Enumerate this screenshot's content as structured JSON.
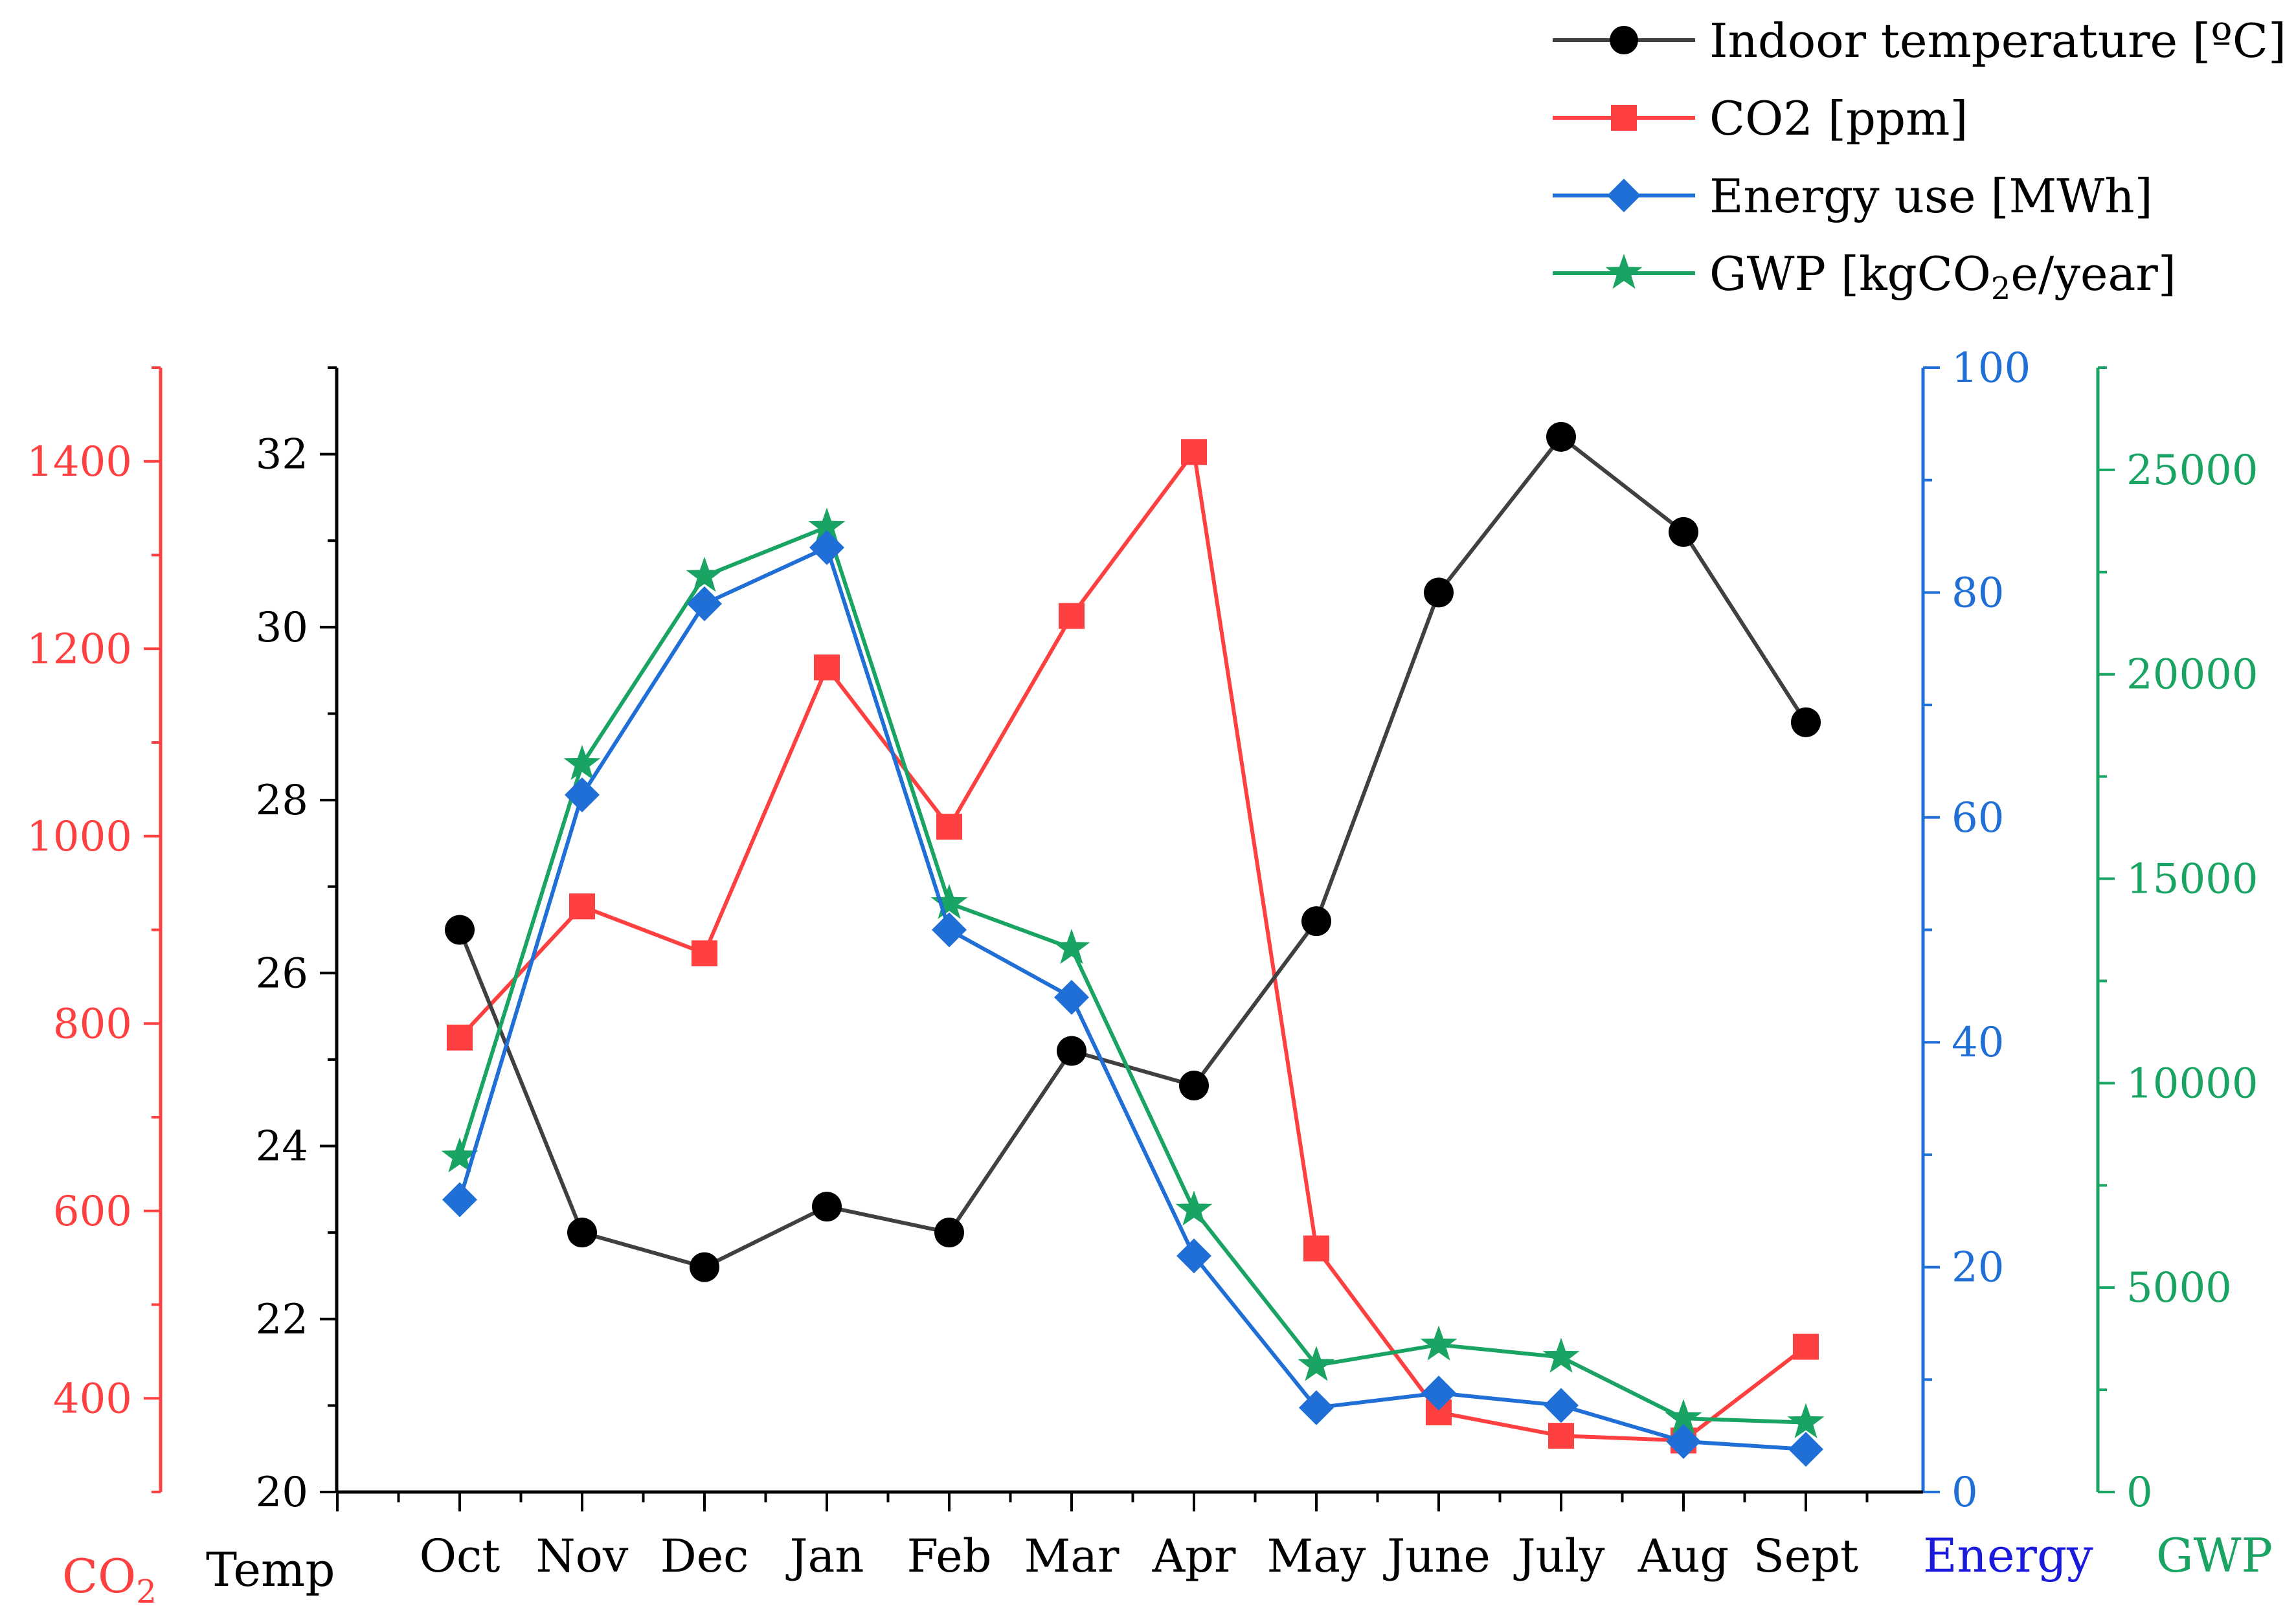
{
  "chart_data": {
    "type": "line",
    "categories": [
      "Oct",
      "Nov",
      "Dec",
      "Jan",
      "Feb",
      "Mar",
      "Apr",
      "May",
      "June",
      "July",
      "Aug",
      "Sept"
    ],
    "series": [
      {
        "name": "Indoor temperature [ºC]",
        "axis": "Temp",
        "color": "#404040",
        "marker": "circle",
        "values": [
          26.5,
          23.0,
          22.6,
          23.3,
          23.0,
          25.1,
          24.7,
          26.6,
          30.4,
          32.2,
          31.1,
          28.9
        ]
      },
      {
        "name": "CO2 [ppm]",
        "axis": "CO2",
        "color": "#ff4040",
        "marker": "square",
        "values": [
          785,
          925,
          875,
          1180,
          1010,
          1235,
          1410,
          560,
          385,
          360,
          355,
          455
        ]
      },
      {
        "name": "Energy use [MWh]",
        "axis": "Energy",
        "color": "#1f6fd6",
        "marker": "diamond",
        "values": [
          26,
          62,
          79,
          84,
          50,
          44,
          21,
          7.5,
          8.8,
          7.7,
          4.5,
          3.8
        ]
      },
      {
        "name": "GWP [kgCO2e/year]",
        "axis": "GWP",
        "color": "#1aa463",
        "marker": "star",
        "values": [
          8200,
          17800,
          22400,
          23600,
          14400,
          13300,
          6900,
          3100,
          3600,
          3300,
          1800,
          1700
        ]
      }
    ],
    "axes": {
      "temp": {
        "label": "Temp",
        "range": [
          20,
          33
        ],
        "ticks": [
          "20",
          "22",
          "24",
          "26",
          "28",
          "30",
          "32"
        ],
        "color": "#000000"
      },
      "co2": {
        "label": "CO",
        "sub": "2",
        "range": [
          300,
          1500
        ],
        "ticks": [
          "400",
          "600",
          "800",
          "1000",
          "1200",
          "1400"
        ],
        "color": "#ff4040"
      },
      "energy": {
        "label": "Energy",
        "range": [
          0,
          100
        ],
        "ticks": [
          "0",
          "20",
          "40",
          "60",
          "80",
          "100"
        ],
        "color": "#1f6fd6",
        "label_color": "#1a1adc"
      },
      "gwp": {
        "label": "GWP",
        "range": [
          0,
          27500
        ],
        "ticks": [
          "0",
          "5000",
          "10000",
          "15000",
          "20000",
          "25000"
        ],
        "color": "#1aa463"
      }
    },
    "legend": {
      "position": "top-right",
      "gwp_prefix": "GWP [kgCO",
      "gwp_sub": "2",
      "gwp_suffix": "e/year]"
    }
  }
}
